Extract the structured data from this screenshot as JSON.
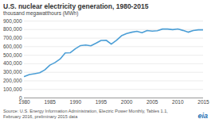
{
  "chart_data": {
    "type": "line",
    "title": "U.S. nuclear electricity generation, 1980-2015",
    "subtitle": "thousand megawatthours (MWh)",
    "source": "Source: U.S. Energy Information Administration, Electric Power Monthly, Tables 1.1, February 2016, preliminary 2015 data",
    "logo": "eia",
    "x": [
      1980,
      1981,
      1982,
      1983,
      1984,
      1985,
      1986,
      1987,
      1988,
      1989,
      1990,
      1991,
      1992,
      1993,
      1994,
      1995,
      1996,
      1997,
      1998,
      1999,
      2000,
      2001,
      2002,
      2003,
      2004,
      2005,
      2006,
      2007,
      2008,
      2009,
      2010,
      2011,
      2012,
      2013,
      2014,
      2015
    ],
    "series": [
      {
        "name": "Nuclear",
        "color": "#4d9fd6",
        "values": [
          251000,
          273000,
          283000,
          294000,
          328000,
          384000,
          414000,
          455000,
          527000,
          529000,
          577000,
          613000,
          619000,
          610000,
          640000,
          673000,
          675000,
          629000,
          674000,
          728000,
          754000,
          769000,
          780000,
          764000,
          789000,
          782000,
          787000,
          806000,
          806000,
          799000,
          807000,
          790000,
          769000,
          789000,
          797000,
          797000
        ]
      }
    ],
    "xlim": [
      1980,
      2015
    ],
    "xticks": [
      1980,
      1985,
      1990,
      1995,
      2000,
      2005,
      2010,
      2015
    ],
    "ylim": [
      0,
      900000
    ],
    "yticks": [
      0,
      {
        "value": 100000,
        "label": "100,000"
      },
      {
        "value": 200000,
        "label": "200,000"
      },
      {
        "value": 300000,
        "label": "300,000"
      },
      {
        "value": 400000,
        "label": "400,000"
      },
      {
        "value": 500000,
        "label": "500,000"
      },
      {
        "value": 600000,
        "label": "600,000"
      },
      {
        "value": 700000,
        "label": "700,000"
      },
      {
        "value": 800000,
        "label": "800,000"
      },
      {
        "value": 900000,
        "label": "900,000"
      }
    ],
    "grid": true
  }
}
